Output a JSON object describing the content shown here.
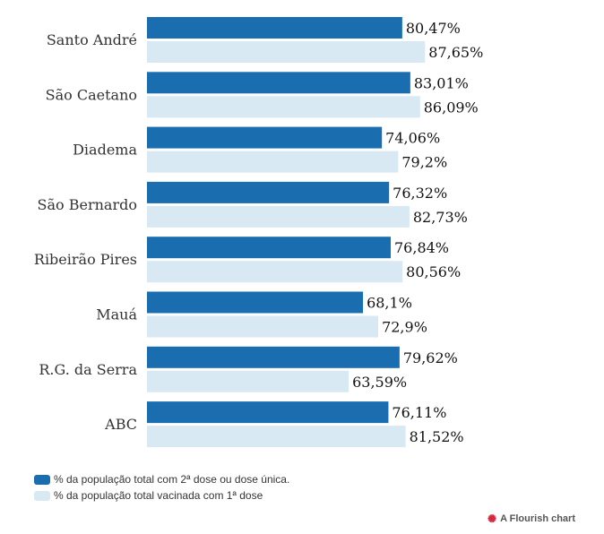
{
  "chart_data": {
    "type": "bar",
    "orientation": "horizontal",
    "categories": [
      "Santo André",
      "São Caetano",
      "Diadema",
      "São Bernardo",
      "Ribeirão Pires",
      "Mauá",
      "R.G. da Serra",
      "ABC"
    ],
    "series": [
      {
        "name": "% da população total com 2ª dose ou dose única.",
        "color": "#1a6eb0",
        "values": [
          80.47,
          83.01,
          74.06,
          76.32,
          76.84,
          68.1,
          79.62,
          76.11
        ],
        "labels": [
          "80,47%",
          "83,01%",
          "74,06%",
          "76,32%",
          "76,84%",
          "68,1%",
          "79,62%",
          "76,11%"
        ]
      },
      {
        "name": "% da população total vacinada com 1ª dose",
        "color": "#d8e9f3",
        "values": [
          87.65,
          86.09,
          79.2,
          82.73,
          80.56,
          72.9,
          63.59,
          81.52
        ],
        "labels": [
          "87,65%",
          "86,09%",
          "79,2%",
          "82,73%",
          "80,56%",
          "72,9%",
          "63,59%",
          "81,52%"
        ]
      }
    ],
    "xlim": [
      0,
      100
    ],
    "grid": false,
    "legend_position": "bottom-left"
  },
  "credit": "A Flourish chart"
}
